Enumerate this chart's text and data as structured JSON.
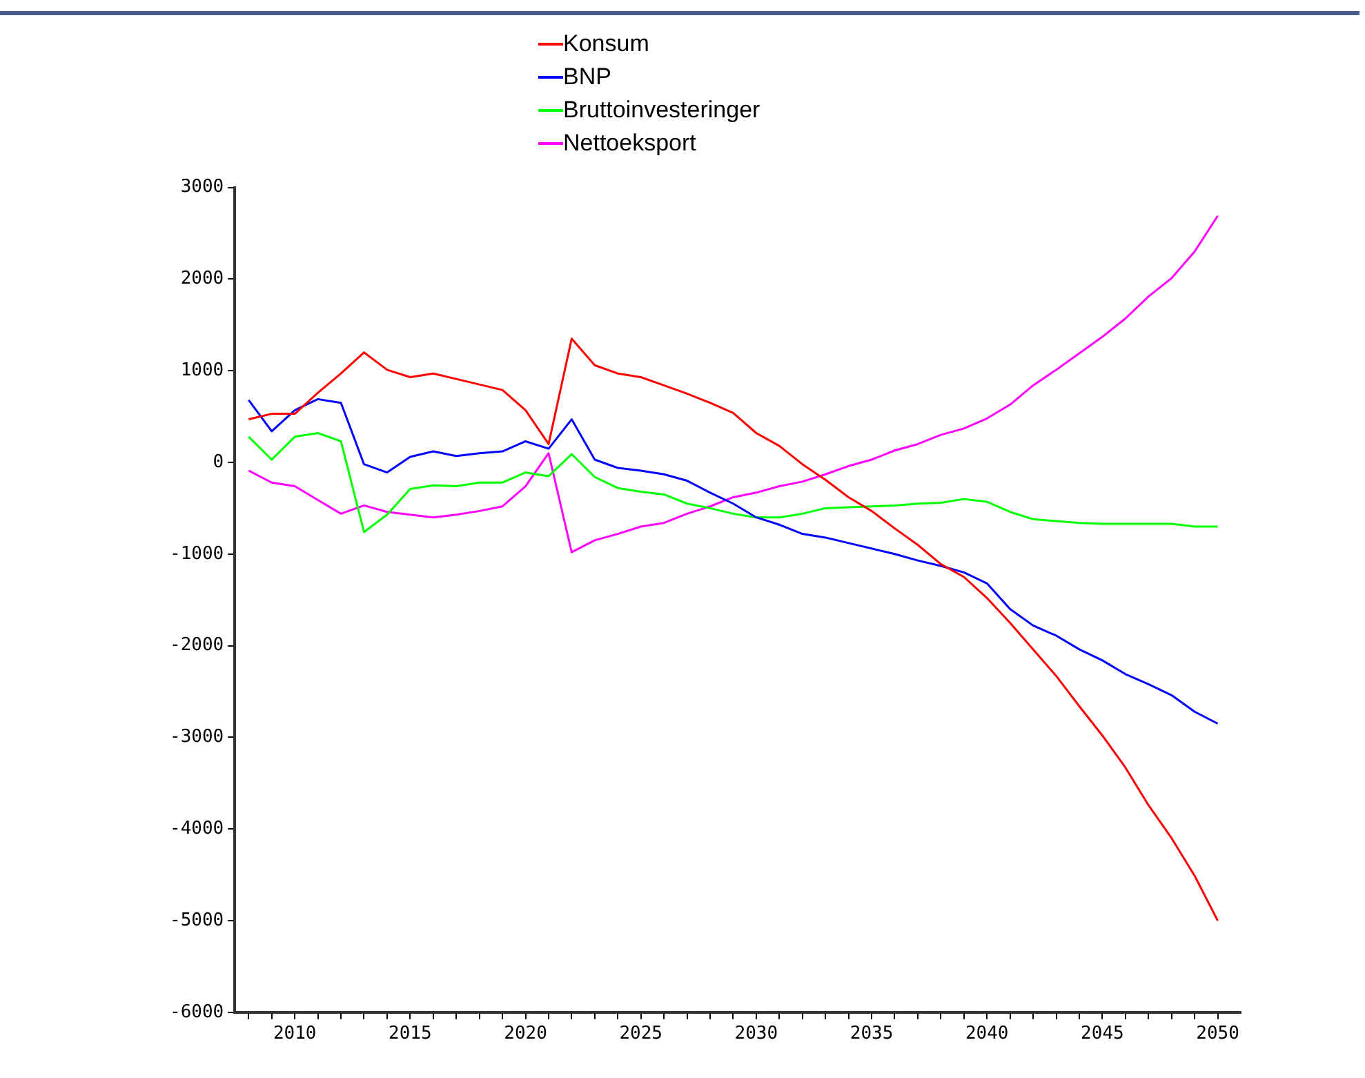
{
  "chart_data": {
    "type": "line",
    "x": [
      2008,
      2009,
      2010,
      2011,
      2012,
      2013,
      2014,
      2015,
      2016,
      2017,
      2018,
      2019,
      2020,
      2021,
      2022,
      2023,
      2024,
      2025,
      2026,
      2027,
      2028,
      2029,
      2030,
      2031,
      2032,
      2033,
      2034,
      2035,
      2036,
      2037,
      2038,
      2039,
      2040,
      2041,
      2042,
      2043,
      2044,
      2045,
      2046,
      2047,
      2048,
      2049,
      2050
    ],
    "series": [
      {
        "name": "Konsum",
        "color": "#ff0000",
        "values": [
          470,
          530,
          530,
          760,
          970,
          1200,
          1010,
          930,
          970,
          910,
          850,
          790,
          570,
          200,
          1350,
          1060,
          970,
          930,
          840,
          750,
          650,
          540,
          320,
          180,
          -20,
          -190,
          -380,
          -530,
          -720,
          -900,
          -1110,
          -1250,
          -1480,
          -1750,
          -2040,
          -2330,
          -2660,
          -2980,
          -3330,
          -3740,
          -4100,
          -4510,
          -5000
        ]
      },
      {
        "name": "BNP",
        "color": "#0000ff",
        "values": [
          680,
          340,
          570,
          690,
          650,
          -20,
          -110,
          60,
          120,
          70,
          100,
          120,
          230,
          150,
          470,
          30,
          -60,
          -90,
          -130,
          -200,
          -330,
          -450,
          -600,
          -680,
          -780,
          -820,
          -880,
          -940,
          -1000,
          -1070,
          -1130,
          -1200,
          -1320,
          -1600,
          -1780,
          -1890,
          -2040,
          -2160,
          -2310,
          -2420,
          -2540,
          -2720,
          -2850
        ]
      },
      {
        "name": "Bruttoinvesteringer",
        "color": "#00ff00",
        "values": [
          280,
          30,
          280,
          320,
          230,
          -760,
          -570,
          -290,
          -250,
          -260,
          -220,
          -220,
          -110,
          -150,
          90,
          -160,
          -280,
          -320,
          -350,
          -450,
          -500,
          -560,
          -600,
          -600,
          -560,
          -500,
          -490,
          -480,
          -470,
          -450,
          -440,
          -400,
          -430,
          -540,
          -620,
          -640,
          -660,
          -670,
          -670,
          -670,
          -670,
          -700,
          -700
        ]
      },
      {
        "name": "Nettoeksport",
        "color": "#ff00ff",
        "values": [
          -90,
          -220,
          -260,
          -410,
          -560,
          -470,
          -540,
          -570,
          -600,
          -570,
          -530,
          -480,
          -260,
          100,
          -980,
          -850,
          -780,
          -700,
          -660,
          -560,
          -480,
          -380,
          -330,
          -260,
          -210,
          -130,
          -40,
          30,
          130,
          200,
          300,
          370,
          480,
          630,
          840,
          1010,
          1190,
          1370,
          1570,
          1810,
          2010,
          2300,
          2690
        ]
      }
    ],
    "xlim": [
      2007.4,
      2051
    ],
    "xticks": [
      {
        "value": 2008,
        "label": null
      },
      {
        "value": 2009,
        "label": null
      },
      2010,
      {
        "value": 2011,
        "label": null
      },
      {
        "value": 2012,
        "label": null
      },
      {
        "value": 2013,
        "label": null
      },
      {
        "value": 2014,
        "label": null
      },
      2015,
      {
        "value": 2016,
        "label": null
      },
      {
        "value": 2017,
        "label": null
      },
      {
        "value": 2018,
        "label": null
      },
      {
        "value": 2019,
        "label": null
      },
      2020,
      {
        "value": 2021,
        "label": null
      },
      {
        "value": 2022,
        "label": null
      },
      {
        "value": 2023,
        "label": null
      },
      {
        "value": 2024,
        "label": null
      },
      2025,
      {
        "value": 2026,
        "label": null
      },
      {
        "value": 2027,
        "label": null
      },
      {
        "value": 2028,
        "label": null
      },
      {
        "value": 2029,
        "label": null
      },
      2030,
      {
        "value": 2031,
        "label": null
      },
      {
        "value": 2032,
        "label": null
      },
      {
        "value": 2033,
        "label": null
      },
      {
        "value": 2034,
        "label": null
      },
      2035,
      {
        "value": 2036,
        "label": null
      },
      {
        "value": 2037,
        "label": null
      },
      {
        "value": 2038,
        "label": null
      },
      {
        "value": 2039,
        "label": null
      },
      2040,
      {
        "value": 2041,
        "label": null
      },
      {
        "value": 2042,
        "label": null
      },
      {
        "value": 2043,
        "label": null
      },
      {
        "value": 2044,
        "label": null
      },
      2045,
      {
        "value": 2046,
        "label": null
      },
      {
        "value": 2047,
        "label": null
      },
      {
        "value": 2048,
        "label": null
      },
      {
        "value": 2049,
        "label": null
      },
      2050
    ],
    "ylim": [
      -6000,
      3000
    ],
    "yticks": [
      -6000,
      -5000,
      -4000,
      -3000,
      -2000,
      -1000,
      0,
      1000,
      2000,
      3000
    ],
    "grid": false,
    "legend": "top",
    "marker": "none",
    "line_style": "solid"
  }
}
